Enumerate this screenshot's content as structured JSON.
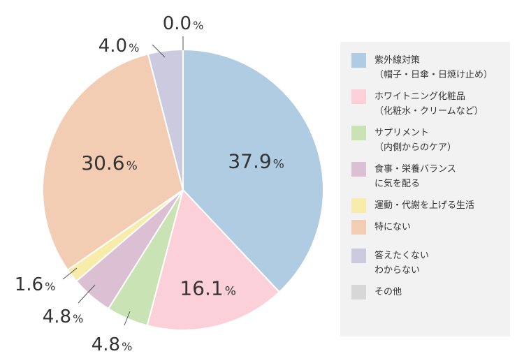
{
  "chart_data": {
    "type": "pie",
    "title": "",
    "start_angle_deg": 0,
    "direction": "clockwise",
    "slices": [
      {
        "label": "紫外線対策（帽子・日傘・日焼け止め）",
        "value": 37.9,
        "display": "37.9",
        "color": "#b0cce3"
      },
      {
        "label": "ホワイトニング化粧品（化粧水・クリームなど）",
        "value": 16.1,
        "display": "16.1",
        "color": "#fbd0d9"
      },
      {
        "label": "サプリメント（内側からのケア）",
        "value": 4.8,
        "display": "4.8",
        "color": "#c9e3b4"
      },
      {
        "label": "食事・栄養バランスに気を配る",
        "value": 4.8,
        "display": "4.8",
        "color": "#dbbfd2"
      },
      {
        "label": "運動・代謝を上げる生活",
        "value": 1.6,
        "display": "1.6",
        "color": "#f7ecaa"
      },
      {
        "label": "特にない",
        "value": 30.6,
        "display": "30.6",
        "color": "#f3cdb3"
      },
      {
        "label": "答えたくない わからない",
        "value": 4.0,
        "display": "4.0",
        "color": "#cccadf"
      },
      {
        "label": "その他",
        "value": 0.0,
        "display": "0.0",
        "color": "#d7d7d7"
      }
    ],
    "percent_suffix": "%",
    "legend_placement": "right"
  },
  "legend": {
    "items": [
      {
        "lines": [
          "紫外線対策",
          "（帽子・日傘・日焼け止め）"
        ],
        "color": "#b0cce3"
      },
      {
        "lines": [
          "ホワイトニング化粧品",
          "（化粧水・クリームなど）"
        ],
        "color": "#fbd0d9"
      },
      {
        "lines": [
          "サプリメント",
          "（内側からのケア）"
        ],
        "color": "#c9e3b4"
      },
      {
        "lines": [
          "食事・栄養バランス",
          "に気を配る"
        ],
        "color": "#dbbfd2"
      },
      {
        "lines": [
          "運動・代謝を上げる生活"
        ],
        "color": "#f7ecaa"
      },
      {
        "lines": [
          "特にない"
        ],
        "color": "#f3cdb3"
      },
      {
        "lines": [
          "答えたくない",
          "わからない"
        ],
        "color": "#cccadf"
      },
      {
        "lines": [
          "その他"
        ],
        "color": "#d7d7d7"
      }
    ]
  }
}
